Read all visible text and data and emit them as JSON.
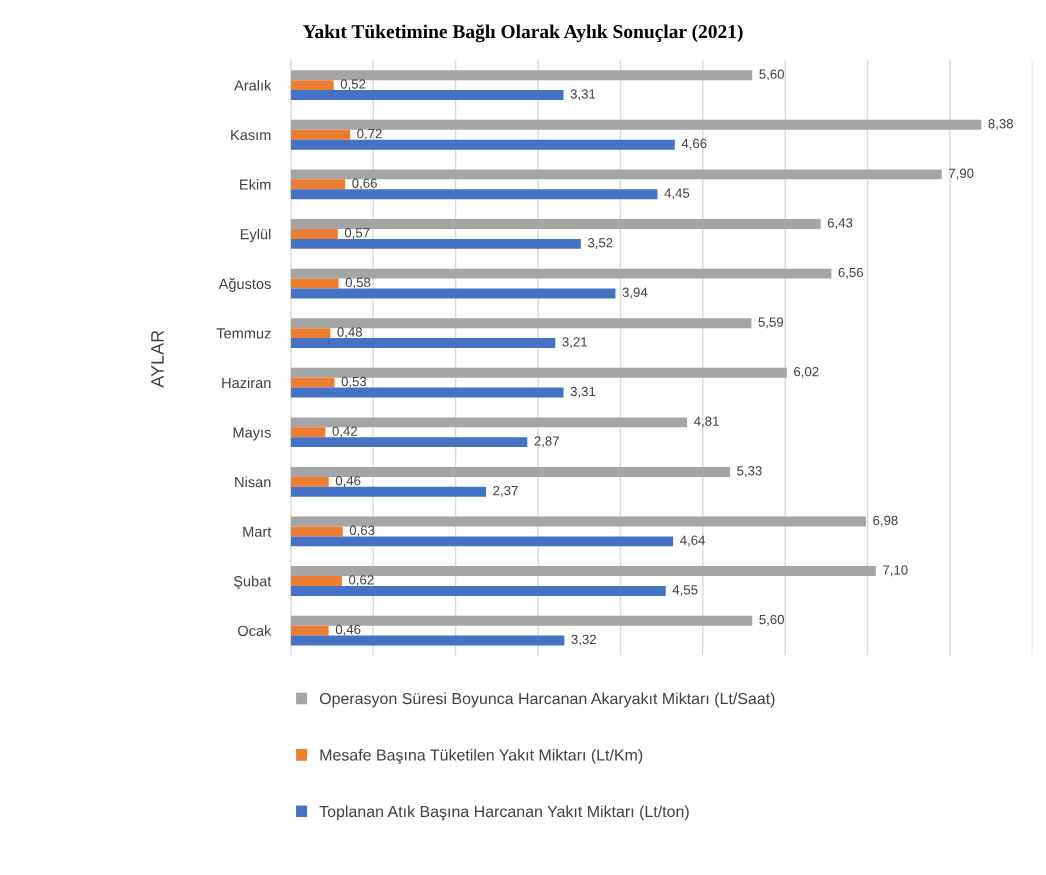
{
  "chart_data": {
    "type": "bar",
    "orientation": "horizontal",
    "title": "Yakıt Tüketimine Bağlı Olarak Aylık Sonuçlar (2021)",
    "ylabel": "AYLAR",
    "categories": [
      "Aralık",
      "Kasım",
      "Ekim",
      "Eylül",
      "Ağustos",
      "Temmuz",
      "Haziran",
      "Mayıs",
      "Nisan",
      "Mart",
      "Şubat",
      "Ocak"
    ],
    "series": [
      {
        "name": "Operasyon Süresi Boyunca Harcanan Akaryakıt Miktarı (Lt/Saat)",
        "color": "#a5a5a5",
        "values": [
          5.6,
          8.38,
          7.9,
          6.43,
          6.56,
          5.59,
          6.02,
          4.81,
          5.33,
          6.98,
          7.1,
          5.6
        ],
        "value_labels": [
          "5,60",
          "8,38",
          "7,90",
          "6,43",
          "6,56",
          "5,59",
          "6,02",
          "4,81",
          "5,33",
          "6,98",
          "7,10",
          "5,60"
        ]
      },
      {
        "name": "Mesafe Başına Tüketilen Yakıt Miktarı (Lt/Km)",
        "color": "#ed7d31",
        "values": [
          0.52,
          0.72,
          0.66,
          0.57,
          0.58,
          0.48,
          0.53,
          0.42,
          0.46,
          0.63,
          0.62,
          0.46
        ],
        "value_labels": [
          "0,52",
          "0,72",
          "0,66",
          "0,57",
          "0,58",
          "0,48",
          "0,53",
          "0,42",
          "0,46",
          "0,63",
          "0,62",
          "0,46"
        ]
      },
      {
        "name": "Toplanan Atık Başına Harcanan Yakıt Miktarı (Lt/ton)",
        "color": "#4472c4",
        "values": [
          3.31,
          4.66,
          4.45,
          3.52,
          3.94,
          3.21,
          3.31,
          2.87,
          2.37,
          4.64,
          4.55,
          3.32
        ],
        "value_labels": [
          "3,31",
          "4,66",
          "4,45",
          "3,52",
          "3,94",
          "3,21",
          "3,31",
          "2,87",
          "2,37",
          "4,64",
          "4,55",
          "3,32"
        ]
      }
    ],
    "xlim": [
      0,
      9
    ],
    "xticks": [
      {
        "value": 0,
        "label": null
      },
      {
        "value": 1,
        "label": null
      },
      {
        "value": 2,
        "label": null
      },
      {
        "value": 3,
        "label": null
      },
      {
        "value": 4,
        "label": null
      },
      {
        "value": 5,
        "label": null
      },
      {
        "value": 6,
        "label": null
      },
      {
        "value": 7,
        "label": null
      },
      {
        "value": 8,
        "label": null
      },
      {
        "value": 9,
        "label": null
      }
    ],
    "grid": "x",
    "legend": "bottom",
    "tick_labels": "y"
  }
}
